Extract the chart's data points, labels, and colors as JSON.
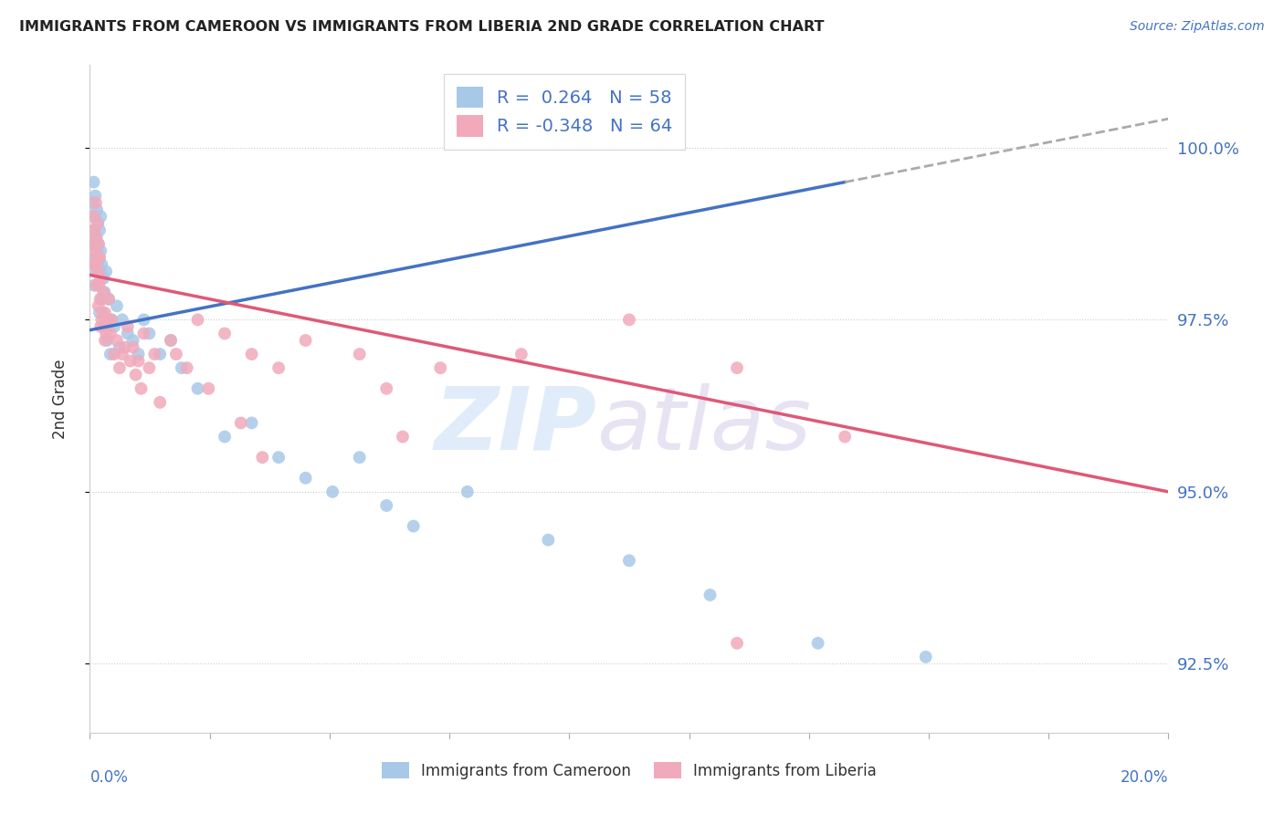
{
  "title": "IMMIGRANTS FROM CAMEROON VS IMMIGRANTS FROM LIBERIA 2ND GRADE CORRELATION CHART",
  "source": "Source: ZipAtlas.com",
  "ylabel": "2nd Grade",
  "yticks": [
    92.5,
    95.0,
    97.5,
    100.0
  ],
  "ytick_labels": [
    "92.5%",
    "95.0%",
    "97.5%",
    "100.0%"
  ],
  "xlim": [
    0.0,
    20.0
  ],
  "ylim": [
    91.5,
    101.2
  ],
  "blue_line_color": "#4472c4",
  "pink_line_color": "#e05878",
  "blue_dot_color": "#a8c8e8",
  "pink_dot_color": "#f0aabb",
  "dash_color": "#aaaaaa",
  "legend_label_cam": "Immigrants from Cameroon",
  "legend_label_lib": "Immigrants from Liberia",
  "watermark_zip_color": "#c8ddf5",
  "watermark_atlas_color": "#d4cce8",
  "blue_line_x0": 0.0,
  "blue_line_y0": 97.35,
  "blue_line_x1": 14.0,
  "blue_line_y1": 99.5,
  "blue_dash_x0": 14.0,
  "blue_dash_y0": 99.5,
  "blue_dash_x1": 20.0,
  "blue_dash_y1": 100.42,
  "pink_line_x0": 0.0,
  "pink_line_y0": 98.15,
  "pink_line_x1": 20.0,
  "pink_line_y1": 95.0,
  "cam_x": [
    0.05,
    0.07,
    0.08,
    0.09,
    0.1,
    0.1,
    0.11,
    0.12,
    0.13,
    0.14,
    0.15,
    0.15,
    0.16,
    0.17,
    0.18,
    0.19,
    0.2,
    0.2,
    0.22,
    0.25,
    0.27,
    0.3,
    0.35,
    0.4,
    0.45,
    0.5,
    0.6,
    0.7,
    0.8,
    0.9,
    1.0,
    1.1,
    1.3,
    1.5,
    1.7,
    2.0,
    2.5,
    3.0,
    3.5,
    4.0,
    4.5,
    5.0,
    5.5,
    6.0,
    7.0,
    8.5,
    10.0,
    11.5,
    13.5,
    15.5,
    0.08,
    0.12,
    0.18,
    0.22,
    0.28,
    0.32,
    0.38,
    0.55
  ],
  "cam_y": [
    99.2,
    99.5,
    98.8,
    99.0,
    98.6,
    99.3,
    98.4,
    98.7,
    99.1,
    98.5,
    98.3,
    98.9,
    98.6,
    98.4,
    98.8,
    98.2,
    98.5,
    99.0,
    98.3,
    98.1,
    97.9,
    98.2,
    97.8,
    97.5,
    97.4,
    97.7,
    97.5,
    97.3,
    97.2,
    97.0,
    97.5,
    97.3,
    97.0,
    97.2,
    96.8,
    96.5,
    95.8,
    96.0,
    95.5,
    95.2,
    95.0,
    95.5,
    94.8,
    94.5,
    95.0,
    94.3,
    94.0,
    93.5,
    92.8,
    92.6,
    98.0,
    98.2,
    97.6,
    97.8,
    97.4,
    97.2,
    97.0,
    97.1
  ],
  "lib_x": [
    0.05,
    0.07,
    0.08,
    0.09,
    0.1,
    0.11,
    0.12,
    0.13,
    0.14,
    0.15,
    0.16,
    0.17,
    0.18,
    0.19,
    0.2,
    0.22,
    0.25,
    0.28,
    0.3,
    0.35,
    0.4,
    0.5,
    0.6,
    0.7,
    0.8,
    0.9,
    1.0,
    1.2,
    1.5,
    1.8,
    2.0,
    2.5,
    3.0,
    3.5,
    4.0,
    5.0,
    5.5,
    6.5,
    8.0,
    10.0,
    12.0,
    14.0,
    0.08,
    0.12,
    0.16,
    0.2,
    0.24,
    0.28,
    0.32,
    0.38,
    0.45,
    0.55,
    0.65,
    0.75,
    0.85,
    0.95,
    1.1,
    1.3,
    1.6,
    2.2,
    2.8,
    3.2,
    5.8,
    12.0
  ],
  "lib_y": [
    98.6,
    99.0,
    98.8,
    98.5,
    98.3,
    99.2,
    98.7,
    98.4,
    98.9,
    98.2,
    98.6,
    98.0,
    98.4,
    97.8,
    98.1,
    97.5,
    97.9,
    97.6,
    97.3,
    97.8,
    97.5,
    97.2,
    97.0,
    97.4,
    97.1,
    96.9,
    97.3,
    97.0,
    97.2,
    96.8,
    97.5,
    97.3,
    97.0,
    96.8,
    97.2,
    97.0,
    96.5,
    96.8,
    97.0,
    97.5,
    96.8,
    95.8,
    98.3,
    98.0,
    97.7,
    97.4,
    97.6,
    97.2,
    97.5,
    97.3,
    97.0,
    96.8,
    97.1,
    96.9,
    96.7,
    96.5,
    96.8,
    96.3,
    97.0,
    96.5,
    96.0,
    95.5,
    95.8,
    92.8
  ]
}
